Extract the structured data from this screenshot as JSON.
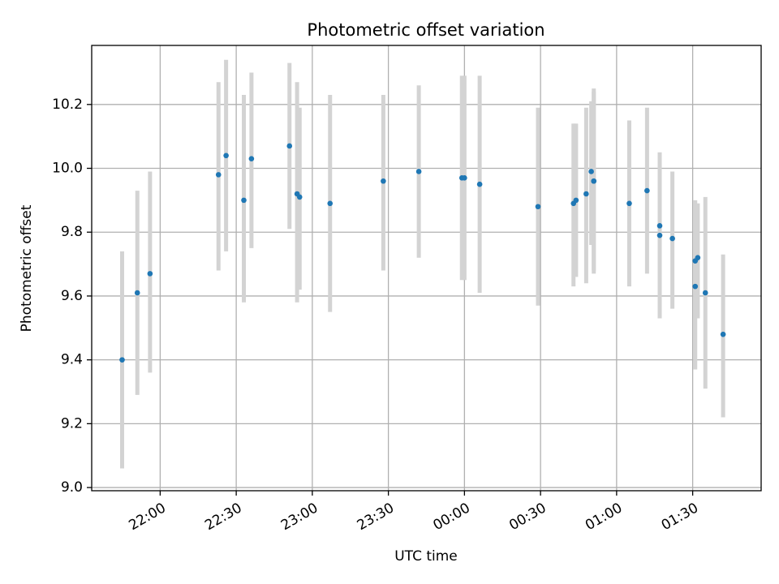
{
  "chart_data": {
    "type": "scatter",
    "title": "Photometric offset variation",
    "xlabel": "UTC time",
    "ylabel": "Photometric offset",
    "x_axis": "time",
    "xlim": [
      "21:33",
      "01:57"
    ],
    "ylim": [
      8.99,
      10.385
    ],
    "x_ticks": [
      "22:00",
      "22:30",
      "23:00",
      "23:30",
      "00:00",
      "00:30",
      "01:00",
      "01:30"
    ],
    "y_ticks": [
      9.0,
      9.2,
      9.4,
      9.6,
      9.8,
      10.0,
      10.2
    ],
    "grid": true,
    "colors": {
      "point": "#1f77b4",
      "errorbar": "#d3d3d3",
      "grid": "#b0b0b0"
    },
    "series": [
      {
        "points": [
          {
            "x": "21:45",
            "y": 9.4,
            "low": 9.06,
            "high": 9.74
          },
          {
            "x": "21:51",
            "y": 9.61,
            "low": 9.29,
            "high": 9.93
          },
          {
            "x": "21:56",
            "y": 9.67,
            "low": 9.36,
            "high": 9.99
          },
          {
            "x": "22:23",
            "y": 9.98,
            "low": 9.68,
            "high": 10.27
          },
          {
            "x": "22:26",
            "y": 10.04,
            "low": 9.74,
            "high": 10.34
          },
          {
            "x": "22:33",
            "y": 9.9,
            "low": 9.58,
            "high": 10.23
          },
          {
            "x": "22:36",
            "y": 10.03,
            "low": 9.75,
            "high": 10.3
          },
          {
            "x": "22:51",
            "y": 10.07,
            "low": 9.81,
            "high": 10.33
          },
          {
            "x": "22:54",
            "y": 9.92,
            "low": 9.58,
            "high": 10.27
          },
          {
            "x": "22:55",
            "y": 9.91,
            "low": 9.62,
            "high": 10.19
          },
          {
            "x": "23:07",
            "y": 9.89,
            "low": 9.55,
            "high": 10.23
          },
          {
            "x": "23:28",
            "y": 9.96,
            "low": 9.68,
            "high": 10.23
          },
          {
            "x": "23:42",
            "y": 9.99,
            "low": 9.72,
            "high": 10.26
          },
          {
            "x": "23:59",
            "y": 9.97,
            "low": 9.65,
            "high": 10.29
          },
          {
            "x": "00:00",
            "y": 9.97,
            "low": 9.65,
            "high": 10.29
          },
          {
            "x": "00:06",
            "y": 9.95,
            "low": 9.61,
            "high": 10.29
          },
          {
            "x": "00:29",
            "y": 9.88,
            "low": 9.57,
            "high": 10.19
          },
          {
            "x": "00:43",
            "y": 9.89,
            "low": 9.63,
            "high": 10.14
          },
          {
            "x": "00:44",
            "y": 9.9,
            "low": 9.66,
            "high": 10.14
          },
          {
            "x": "00:48",
            "y": 9.92,
            "low": 9.64,
            "high": 10.19
          },
          {
            "x": "00:50",
            "y": 9.99,
            "low": 9.76,
            "high": 10.21
          },
          {
            "x": "00:51",
            "y": 9.96,
            "low": 9.67,
            "high": 10.25
          },
          {
            "x": "00:51",
            "y": 9.96,
            "low": 9.68,
            "high": 10.24
          },
          {
            "x": "01:05",
            "y": 9.89,
            "low": 9.63,
            "high": 10.15
          },
          {
            "x": "01:12",
            "y": 9.93,
            "low": 9.67,
            "high": 10.19
          },
          {
            "x": "01:17",
            "y": 9.82,
            "low": 9.6,
            "high": 10.05
          },
          {
            "x": "01:17",
            "y": 9.79,
            "low": 9.53,
            "high": 10.05
          },
          {
            "x": "01:22",
            "y": 9.78,
            "low": 9.56,
            "high": 9.99
          },
          {
            "x": "01:31",
            "y": 9.63,
            "low": 9.37,
            "high": 9.89
          },
          {
            "x": "01:31",
            "y": 9.71,
            "low": 9.53,
            "high": 9.9
          },
          {
            "x": "01:32",
            "y": 9.72,
            "low": 9.53,
            "high": 9.89
          },
          {
            "x": "01:35",
            "y": 9.61,
            "low": 9.31,
            "high": 9.91
          },
          {
            "x": "01:42",
            "y": 9.48,
            "low": 9.22,
            "high": 9.73
          }
        ]
      }
    ]
  }
}
